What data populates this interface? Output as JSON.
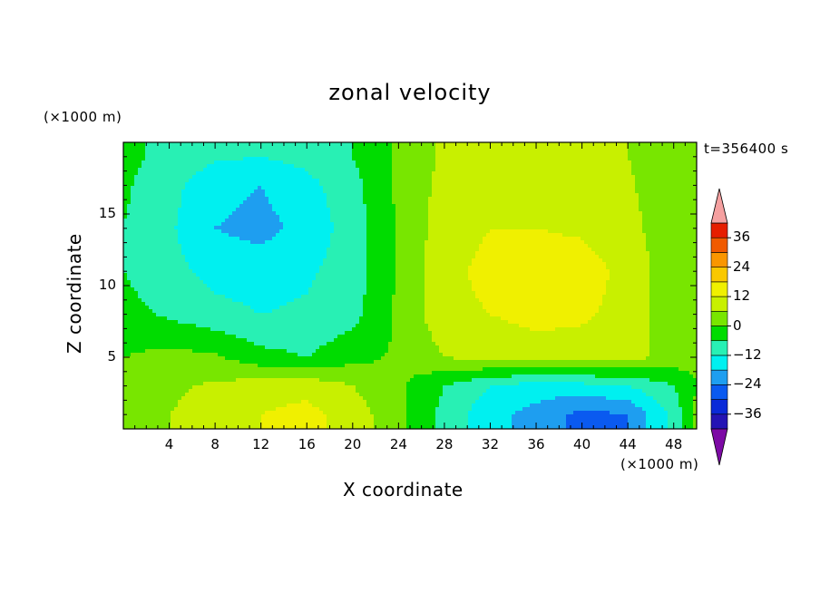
{
  "chart_data": {
    "type": "heatmap",
    "title": "zonal velocity",
    "xlabel": "X coordinate",
    "ylabel": "Z coordinate",
    "x_unit": "(×1000 m)",
    "y_unit": "(×1000 m)",
    "time_label": "t=356400 s",
    "xlim": [
      0,
      50
    ],
    "ylim": [
      0,
      20
    ],
    "x_ticks": [
      4,
      8,
      12,
      16,
      20,
      24,
      28,
      32,
      36,
      40,
      44,
      48
    ],
    "y_ticks": [
      5,
      10,
      15
    ],
    "colorbar": {
      "levels": [
        -42,
        -36,
        -30,
        -24,
        -18,
        -12,
        -6,
        0,
        6,
        12,
        18,
        24,
        30,
        36,
        42
      ],
      "tick_labels": [
        {
          "value": 36,
          "label": "36"
        },
        {
          "value": 24,
          "label": "24"
        },
        {
          "value": 12,
          "label": "12"
        },
        {
          "value": 0,
          "label": "0"
        },
        {
          "value": -12,
          "label": "−12"
        },
        {
          "value": -24,
          "label": "−24"
        },
        {
          "value": -36,
          "label": "−36"
        }
      ],
      "colors": [
        "#3b0f8c",
        "#2414b4",
        "#0a2ad8",
        "#0a5af0",
        "#1e9ef0",
        "#00f0f0",
        "#28f0b4",
        "#00dc00",
        "#78e600",
        "#c8f000",
        "#f0f000",
        "#fac800",
        "#fa9600",
        "#f05a00",
        "#e61e00",
        "#fa8c8c",
        "#7d0aa5"
      ],
      "under_color": "#7d0aa5",
      "over_color": "#f5a0a0"
    },
    "field_description_samples": {
      "x": [
        0,
        4,
        8,
        12,
        16,
        20,
        24,
        28,
        32,
        36,
        40,
        44,
        48,
        50
      ],
      "z": [
        1,
        3,
        5,
        8,
        11,
        14,
        17,
        19
      ],
      "u": [
        [
          3,
          6,
          8,
          12,
          14,
          9,
          2,
          -8,
          -16,
          -20,
          -26,
          -24,
          -10,
          2
        ],
        [
          2,
          5,
          7,
          9,
          10,
          6,
          1,
          -6,
          -12,
          -15,
          -14,
          -12,
          -6,
          0
        ],
        [
          0,
          2,
          1,
          -4,
          -6,
          -2,
          1,
          6,
          8,
          9,
          9,
          8,
          4,
          1
        ],
        [
          -4,
          -7,
          -10,
          -12,
          -11,
          -8,
          1,
          10,
          12,
          14,
          13,
          10,
          2,
          0
        ],
        [
          -6,
          -10,
          -14,
          -15,
          -13,
          -9,
          1,
          10,
          14,
          16,
          15,
          10,
          2,
          0
        ],
        [
          -6,
          -11,
          -18,
          -20,
          -16,
          -9,
          1,
          9,
          12,
          12,
          11,
          8,
          2,
          0
        ],
        [
          -5,
          -10,
          -16,
          -18,
          -14,
          -8,
          1,
          8,
          10,
          10,
          9,
          7,
          1,
          0
        ],
        [
          -4,
          -8,
          -11,
          -12,
          -10,
          -6,
          1,
          7,
          8,
          8,
          7,
          6,
          1,
          0
        ]
      ]
    }
  }
}
